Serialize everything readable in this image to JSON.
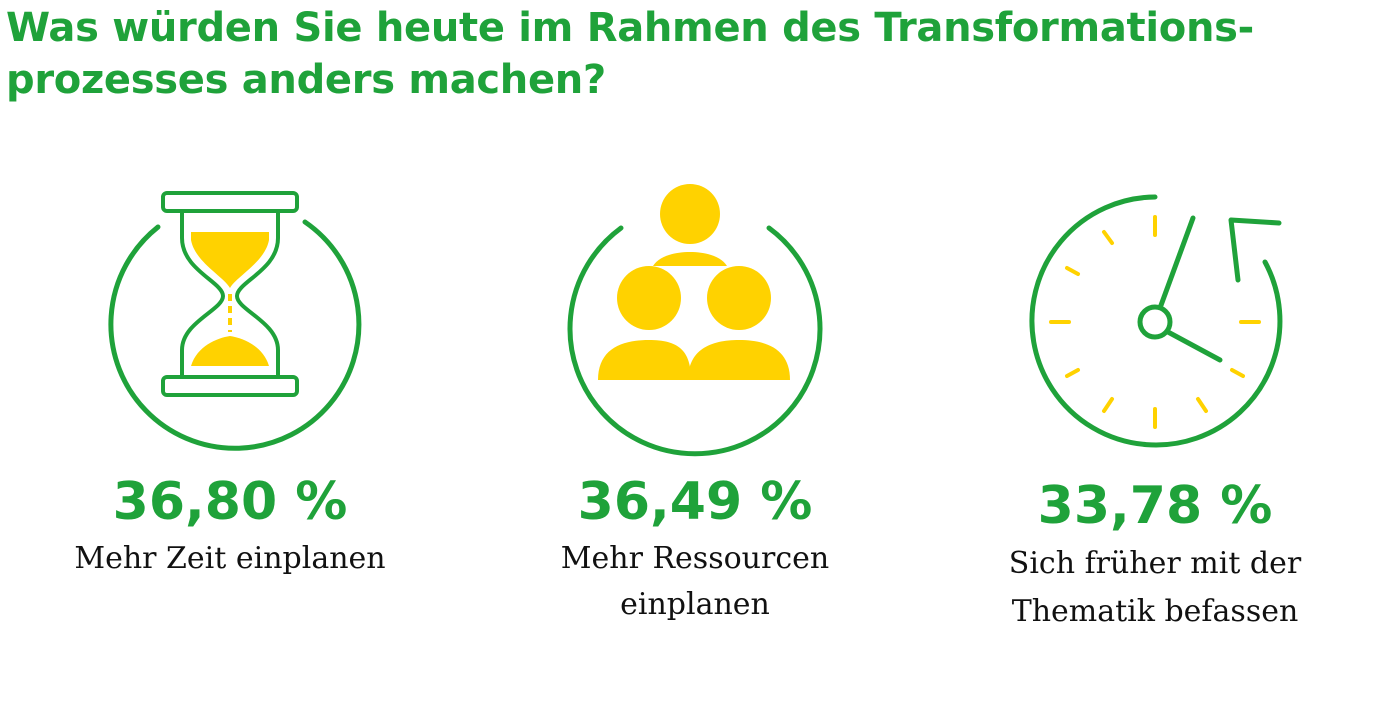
{
  "title_lines": [
    "Was würden Sie heute im Rahmen des Transformations-",
    "prozesses anders machen?"
  ],
  "colors": {
    "accent_green": "#1fa23a",
    "accent_yellow": "#ffd200",
    "text": "#111111"
  },
  "chart_data": {
    "type": "table",
    "title": "Was würden Sie heute im Rahmen des Transformationsprozesses anders machen?",
    "unit": "%",
    "items": [
      {
        "icon": "hourglass-icon",
        "value": 36.8,
        "value_label": "36,80 %",
        "label_lines": [
          "Mehr Zeit einplanen"
        ]
      },
      {
        "icon": "people-group-icon",
        "value": 36.49,
        "value_label": "36,49 %",
        "label_lines": [
          "Mehr Ressourcen einplanen"
        ]
      },
      {
        "icon": "clock-icon",
        "value": 33.78,
        "value_label": "33,78 %",
        "label_lines": [
          "Sich früher mit der",
          "Thematik befassen"
        ]
      }
    ]
  }
}
